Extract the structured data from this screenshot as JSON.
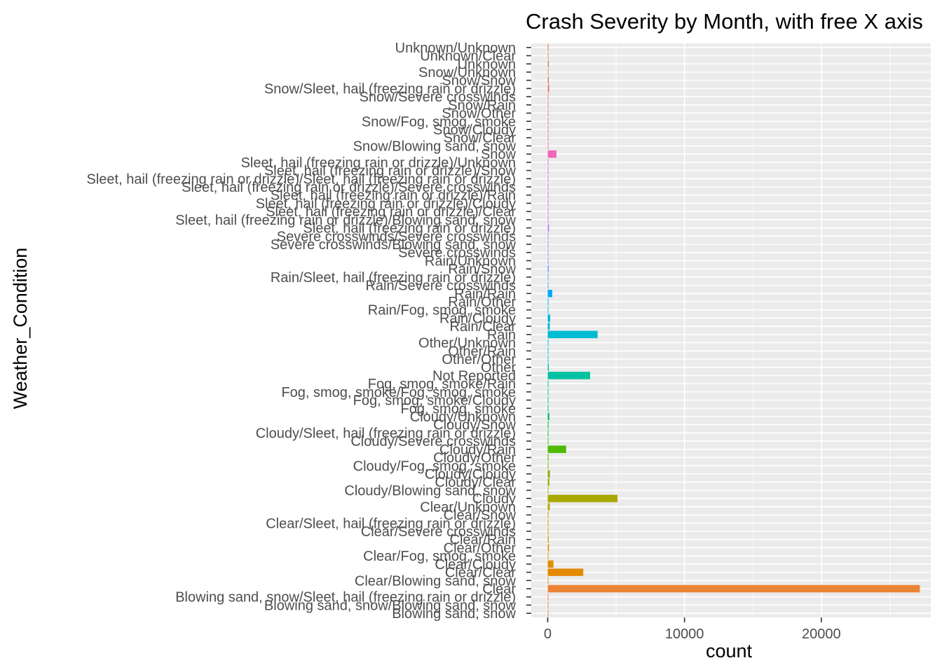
{
  "chart_data": {
    "type": "bar",
    "orientation": "horizontal",
    "title": "Crash Severity by Month, with free X axis",
    "xlabel": "count",
    "ylabel": "Weather_Condition",
    "xlim": [
      -1200,
      28000
    ],
    "xticks": [
      0,
      10000,
      20000
    ],
    "xtick_labels": [
      "0",
      "10000",
      "20000"
    ],
    "grid": true,
    "legend": "none",
    "categories": [
      "Blowing sand, snow",
      "Blowing sand, snow/Blowing sand, snow",
      "Blowing sand, snow/Sleet, hail (freezing rain or drizzle)",
      "Clear",
      "Clear/Blowing sand, snow",
      "Clear/Clear",
      "Clear/Cloudy",
      "Clear/Fog, smog, smoke",
      "Clear/Other",
      "Clear/Rain",
      "Clear/Severe crosswinds",
      "Clear/Sleet, hail (freezing rain or drizzle)",
      "Clear/Snow",
      "Clear/Unknown",
      "Cloudy",
      "Cloudy/Blowing sand, snow",
      "Cloudy/Clear",
      "Cloudy/Cloudy",
      "Cloudy/Fog, smog, smoke",
      "Cloudy/Other",
      "Cloudy/Rain",
      "Cloudy/Severe crosswinds",
      "Cloudy/Sleet, hail (freezing rain or drizzle)",
      "Cloudy/Snow",
      "Cloudy/Unknown",
      "Fog, smog, smoke",
      "Fog, smog, smoke/Cloudy",
      "Fog, smog, smoke/Fog, smog, smoke",
      "Fog, smog, smoke/Rain",
      "Not Reported",
      "Other",
      "Other/Other",
      "Other/Rain",
      "Other/Unknown",
      "Rain",
      "Rain/Clear",
      "Rain/Cloudy",
      "Rain/Fog, smog, smoke",
      "Rain/Other",
      "Rain/Rain",
      "Rain/Severe crosswinds",
      "Rain/Sleet, hail (freezing rain or drizzle)",
      "Rain/Snow",
      "Rain/Unknown",
      "Severe crosswinds",
      "Severe crosswinds/Blowing sand, snow",
      "Severe crosswinds/Severe crosswinds",
      "Sleet, hail (freezing rain or drizzle)",
      "Sleet, hail (freezing rain or drizzle)/Blowing sand, snow",
      "Sleet, hail (freezing rain or drizzle)/Clear",
      "Sleet, hail (freezing rain or drizzle)/Cloudy",
      "Sleet, hail (freezing rain or drizzle)/Rain",
      "Sleet, hail (freezing rain or drizzle)/Severe crosswinds",
      "Sleet, hail (freezing rain or drizzle)/Sleet, hail (freezing rain or drizzle)",
      "Sleet, hail (freezing rain or drizzle)/Snow",
      "Sleet, hail (freezing rain or drizzle)/Unknown",
      "Snow",
      "Snow/Blowing sand, snow",
      "Snow/Clear",
      "Snow/Cloudy",
      "Snow/Fog, smog, smoke",
      "Snow/Other",
      "Snow/Rain",
      "Snow/Severe crosswinds",
      "Snow/Sleet, hail (freezing rain or drizzle)",
      "Snow/Snow",
      "Snow/Unknown",
      "Unknown",
      "Unknown/Clear",
      "Unknown/Unknown"
    ],
    "values": [
      10,
      5,
      5,
      27200,
      15,
      2600,
      420,
      30,
      90,
      70,
      5,
      10,
      25,
      150,
      5100,
      10,
      120,
      160,
      20,
      60,
      1350,
      10,
      20,
      60,
      120,
      20,
      15,
      15,
      10,
      3100,
      80,
      20,
      10,
      20,
      3650,
      150,
      180,
      30,
      40,
      330,
      10,
      15,
      80,
      40,
      10,
      5,
      5,
      100,
      5,
      10,
      10,
      10,
      5,
      5,
      10,
      10,
      640,
      15,
      20,
      20,
      15,
      15,
      20,
      10,
      110,
      80,
      40,
      80,
      30,
      60
    ],
    "bar_colors": [
      "#F8766D",
      "#F47A5C",
      "#F07E4D",
      "#EB8335",
      "#E8861A",
      "#E48A00",
      "#DF8E00",
      "#DB9100",
      "#D69400",
      "#D19800",
      "#CC9B00",
      "#C59E00",
      "#BFA100",
      "#B9A400",
      "#A9A900",
      "#9DAC00",
      "#90AF00",
      "#83B200",
      "#73B500",
      "#60B800",
      "#4EBB00",
      "#34BE00",
      "#00BE3A",
      "#00BF50",
      "#00C060",
      "#00C06F",
      "#00C17C",
      "#00C188",
      "#00C195",
      "#00C1A0",
      "#00C0AB",
      "#00BFB5",
      "#00BFBF",
      "#00BEC8",
      "#00BCD1",
      "#00B9DA",
      "#00B6E2",
      "#00B3E9",
      "#00AEF0",
      "#00A9F6",
      "#3DA3FB",
      "#5C9DFF",
      "#7596FF",
      "#8A8FFF",
      "#9B89FF",
      "#A983FF",
      "#B57DFF",
      "#C079FF",
      "#CA74FA",
      "#D370F3",
      "#DA6DEC",
      "#E06AE5",
      "#E568DE",
      "#EA67D6",
      "#ED66CD",
      "#EF67C4",
      "#F068BB",
      "#F169B2",
      "#F16BA9",
      "#F06DA0",
      "#EF6F97",
      "#ED728E",
      "#EB7485",
      "#E9777D",
      "#E67A75",
      "#E37D6E",
      "#E07F67",
      "#DC8262",
      "#D9845C",
      "#D58757"
    ]
  }
}
